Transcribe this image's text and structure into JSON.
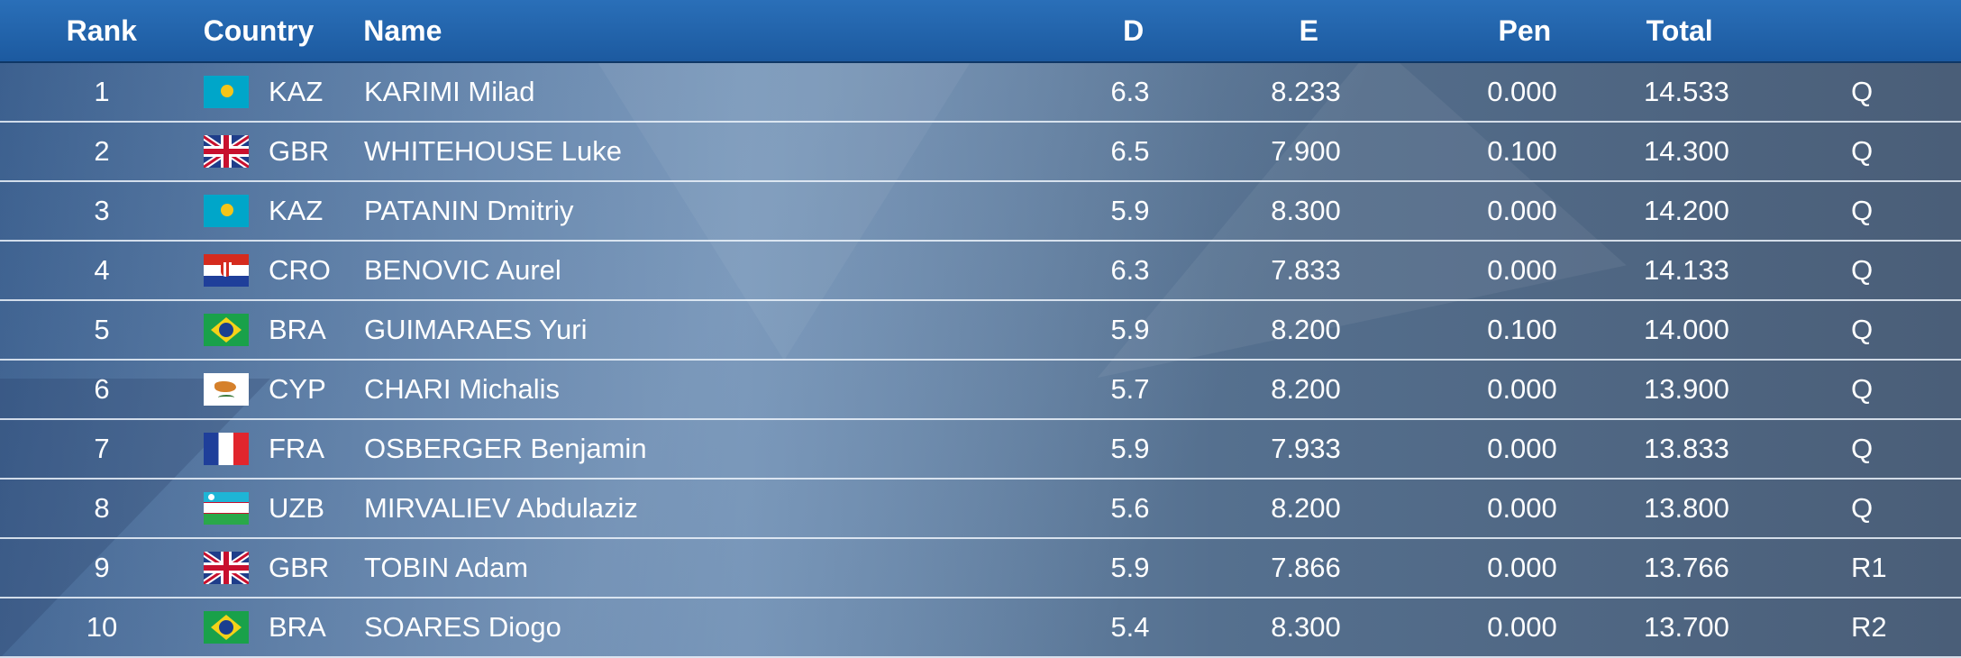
{
  "header": {
    "rank": "Rank",
    "country": "Country",
    "name": "Name",
    "d": "D",
    "e": "E",
    "pen": "Pen",
    "total": "Total"
  },
  "rows": [
    {
      "rank": "1",
      "flag": "kazakhstan-flag",
      "code": "KAZ",
      "name": "KARIMI Milad",
      "d": "6.3",
      "e": "8.233",
      "pen": "0.000",
      "total": "14.533",
      "q": "Q"
    },
    {
      "rank": "2",
      "flag": "uk-flag",
      "code": "GBR",
      "name": "WHITEHOUSE Luke",
      "d": "6.5",
      "e": "7.900",
      "pen": "0.100",
      "total": "14.300",
      "q": "Q"
    },
    {
      "rank": "3",
      "flag": "kazakhstan-flag",
      "code": "KAZ",
      "name": "PATANIN Dmitriy",
      "d": "5.9",
      "e": "8.300",
      "pen": "0.000",
      "total": "14.200",
      "q": "Q"
    },
    {
      "rank": "4",
      "flag": "croatia-flag",
      "code": "CRO",
      "name": "BENOVIC Aurel",
      "d": "6.3",
      "e": "7.833",
      "pen": "0.000",
      "total": "14.133",
      "q": "Q"
    },
    {
      "rank": "5",
      "flag": "brazil-flag",
      "code": "BRA",
      "name": "GUIMARAES Yuri",
      "d": "5.9",
      "e": "8.200",
      "pen": "0.100",
      "total": "14.000",
      "q": "Q"
    },
    {
      "rank": "6",
      "flag": "cyprus-flag",
      "code": "CYP",
      "name": "CHARI Michalis",
      "d": "5.7",
      "e": "8.200",
      "pen": "0.000",
      "total": "13.900",
      "q": "Q"
    },
    {
      "rank": "7",
      "flag": "france-flag",
      "code": "FRA",
      "name": "OSBERGER Benjamin",
      "d": "5.9",
      "e": "7.933",
      "pen": "0.000",
      "total": "13.833",
      "q": "Q"
    },
    {
      "rank": "8",
      "flag": "uzbekistan-flag",
      "code": "UZB",
      "name": "MIRVALIEV Abdulaziz",
      "d": "5.6",
      "e": "8.200",
      "pen": "0.000",
      "total": "13.800",
      "q": "Q"
    },
    {
      "rank": "9",
      "flag": "uk-flag",
      "code": "GBR",
      "name": "TOBIN Adam",
      "d": "5.9",
      "e": "7.866",
      "pen": "0.000",
      "total": "13.766",
      "q": "R1"
    },
    {
      "rank": "10",
      "flag": "brazil-flag",
      "code": "BRA",
      "name": "SOARES Diogo",
      "d": "5.4",
      "e": "8.300",
      "pen": "0.000",
      "total": "13.700",
      "q": "R2"
    }
  ],
  "colors": {
    "header_bg": "#1c5aa0",
    "row_divider": "#ebf2fa",
    "text": "#ffffff"
  }
}
